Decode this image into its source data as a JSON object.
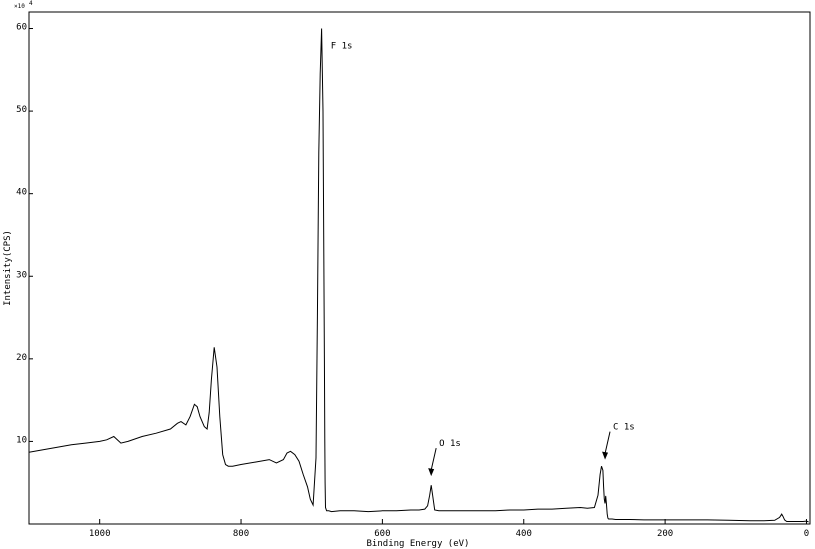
{
  "chart_data": {
    "type": "line",
    "title": "",
    "xlabel": "Binding Energy (eV)",
    "ylabel": "Intensity(CPS)",
    "y_multiplier_label": "×10",
    "y_multiplier_exp": "4",
    "xlim": [
      1100,
      -5
    ],
    "ylim": [
      0,
      62
    ],
    "x_reversed": true,
    "x_ticks": [
      {
        "value": 1000,
        "label": "1000"
      },
      {
        "value": 800,
        "label": "800"
      },
      {
        "value": 600,
        "label": "600"
      },
      {
        "value": 400,
        "label": "400"
      },
      {
        "value": 200,
        "label": "200"
      },
      {
        "value": 0,
        "label": "0"
      }
    ],
    "y_ticks": [
      {
        "value": 10,
        "label": "10"
      },
      {
        "value": 20,
        "label": "20"
      },
      {
        "value": 30,
        "label": "30"
      },
      {
        "value": 40,
        "label": "40"
      },
      {
        "value": 50,
        "label": "50"
      },
      {
        "value": 60,
        "label": "60"
      }
    ],
    "grid": false,
    "line_color": "#000000",
    "series": [
      {
        "x": [
          1100,
          1080,
          1060,
          1040,
          1020,
          1000,
          990,
          980,
          975,
          970,
          960,
          940,
          920,
          900,
          890,
          885,
          878,
          872,
          866,
          862,
          858,
          852,
          848,
          845,
          842,
          838,
          834,
          830,
          826,
          822,
          818,
          812,
          800,
          780,
          760,
          750,
          740,
          735,
          730,
          724,
          718,
          712,
          706,
          702,
          698,
          694,
          692,
          690,
          688,
          686,
          684,
          683,
          682,
          681.5,
          681,
          680.5,
          679,
          676,
          672,
          660,
          640,
          620,
          600,
          580,
          560,
          548,
          540,
          536,
          533,
          531,
          529,
          526,
          520,
          500,
          480,
          460,
          440,
          420,
          400,
          380,
          360,
          340,
          320,
          310,
          300,
          295,
          292,
          290,
          288,
          287,
          286,
          285,
          284,
          283,
          282,
          281,
          280,
          275,
          270,
          250,
          230,
          200,
          170,
          140,
          110,
          80,
          60,
          45,
          38,
          35,
          33,
          31,
          28,
          20,
          10,
          5,
          0,
          -3
        ],
        "y": [
          8.7,
          9.0,
          9.3,
          9.6,
          9.8,
          10.0,
          10.2,
          10.6,
          10.2,
          9.8,
          10.0,
          10.6,
          11.0,
          11.5,
          12.2,
          12.4,
          12.0,
          13.0,
          14.5,
          14.2,
          13.0,
          11.8,
          11.5,
          13.5,
          17.5,
          21.4,
          19.0,
          13.0,
          8.4,
          7.2,
          7.0,
          7.0,
          7.2,
          7.5,
          7.8,
          7.4,
          7.8,
          8.6,
          8.8,
          8.4,
          7.6,
          6.0,
          4.5,
          3.0,
          2.3,
          8.0,
          25.0,
          45.0,
          54.5,
          60.0,
          50.0,
          35.0,
          20.0,
          10.0,
          5.0,
          2.0,
          1.6,
          1.6,
          1.5,
          1.6,
          1.6,
          1.5,
          1.6,
          1.6,
          1.7,
          1.7,
          1.8,
          2.2,
          3.5,
          4.7,
          3.5,
          1.7,
          1.6,
          1.6,
          1.6,
          1.6,
          1.6,
          1.7,
          1.7,
          1.8,
          1.8,
          1.9,
          2.0,
          1.9,
          2.0,
          3.5,
          6.0,
          7.0,
          6.5,
          4.5,
          3.0,
          2.5,
          3.4,
          2.5,
          1.2,
          0.7,
          0.6,
          0.6,
          0.55,
          0.55,
          0.5,
          0.5,
          0.5,
          0.5,
          0.45,
          0.4,
          0.4,
          0.45,
          0.8,
          1.2,
          0.9,
          0.5,
          0.3,
          0.3,
          0.3,
          0.3,
          0.35,
          0.25
        ]
      }
    ],
    "annotations": [
      {
        "label": "F 1s",
        "x": 690,
        "y": 60,
        "arrow": false
      },
      {
        "label": "O 1s",
        "x": 531,
        "y": 5.8,
        "arrow": true
      },
      {
        "label": "C 1s",
        "x": 285,
        "y": 7.8,
        "arrow": true
      }
    ]
  }
}
